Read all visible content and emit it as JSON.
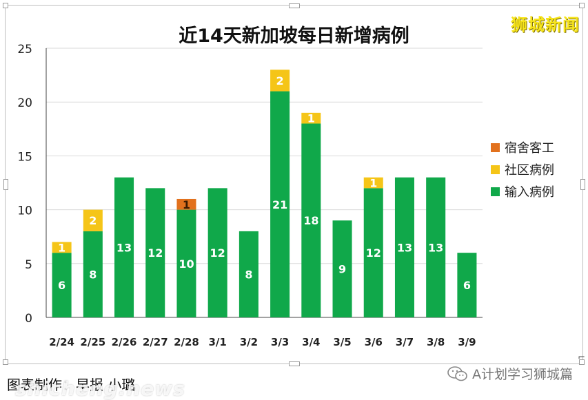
{
  "brand": "狮城新闻",
  "caption": "图表制作：早报 小璐",
  "watermark": "shicheng.news",
  "wechat_account": "A计划学习狮城篇",
  "chart_data": {
    "type": "bar",
    "stacked": true,
    "title": "近14天新加坡每日新增病例",
    "categories": [
      "2/24",
      "2/25",
      "2/26",
      "2/27",
      "2/28",
      "3/1",
      "3/2",
      "3/3",
      "3/4",
      "3/5",
      "3/6",
      "3/7",
      "3/8",
      "3/9"
    ],
    "series": [
      {
        "name": "输入病例",
        "color": "#10a84a",
        "values": [
          6,
          8,
          13,
          12,
          10,
          12,
          8,
          21,
          18,
          9,
          12,
          13,
          13,
          6
        ]
      },
      {
        "name": "社区病例",
        "color": "#f5c518",
        "values": [
          1,
          2,
          0,
          0,
          0,
          0,
          0,
          2,
          1,
          0,
          1,
          0,
          0,
          0
        ]
      },
      {
        "name": "宿舍客工",
        "color": "#e2711d",
        "values": [
          0,
          0,
          0,
          0,
          1,
          0,
          0,
          0,
          0,
          0,
          0,
          0,
          0,
          0
        ]
      }
    ],
    "legend_order": [
      "宿舍客工",
      "社区病例",
      "输入病例"
    ],
    "legend_position": "right",
    "ylim": [
      0,
      25
    ],
    "yticks": [
      0,
      5,
      10,
      15,
      20,
      25
    ],
    "grid": true
  }
}
